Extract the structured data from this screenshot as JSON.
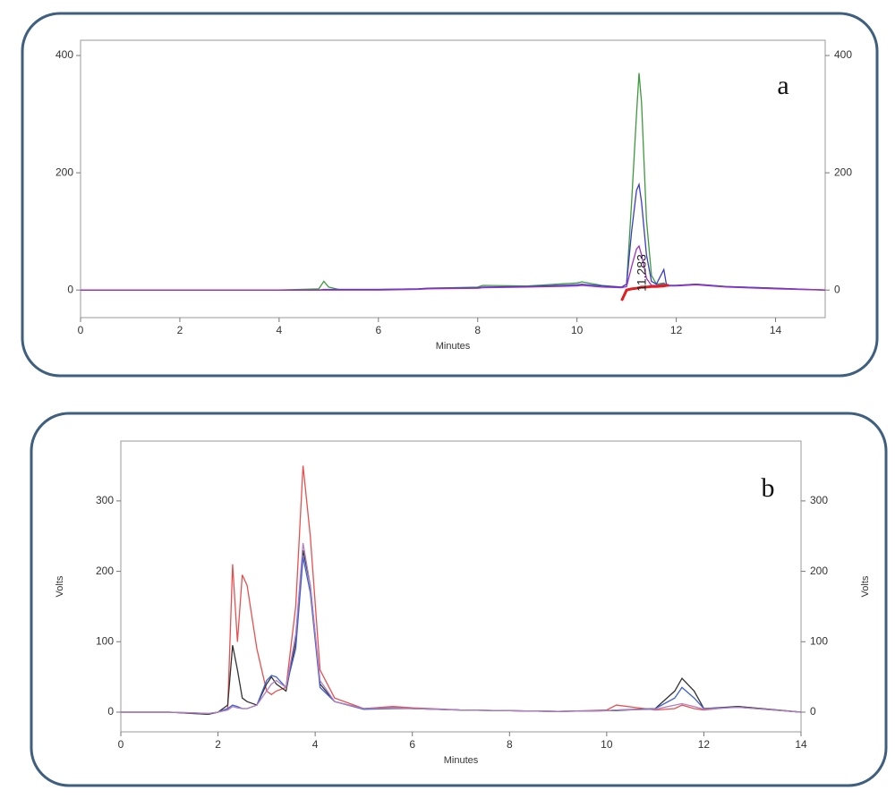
{
  "chart_data": [
    {
      "type": "line",
      "label": "a",
      "peak_label": "11.283",
      "x_label": "Minutes",
      "x": [
        0,
        1,
        2,
        3,
        4,
        4.8,
        4.9,
        5.0,
        5.2,
        6,
        6.8,
        7,
        8,
        8.1,
        9,
        10,
        10.1,
        10.5,
        10.9,
        11.0,
        11.1,
        11.2,
        11.25,
        11.3,
        11.4,
        11.5,
        11.6,
        11.75,
        11.8,
        11.85,
        12,
        12.4,
        13,
        14,
        15
      ],
      "series": [
        {
          "color": "#3c9a3c",
          "values": [
            0,
            0,
            0,
            0,
            0,
            2,
            15,
            5,
            1,
            1,
            2,
            3,
            5,
            8,
            7,
            12,
            14,
            8,
            5,
            10,
            150,
            300,
            370,
            320,
            120,
            25,
            10,
            12,
            8,
            8,
            8,
            10,
            6,
            3,
            0
          ]
        },
        {
          "color": "#3b3bcc",
          "values": [
            0,
            0,
            0,
            0,
            0,
            0,
            1,
            1,
            1,
            1,
            2,
            3,
            4,
            5,
            6,
            9,
            10,
            7,
            5,
            10,
            100,
            170,
            180,
            150,
            60,
            15,
            10,
            35,
            10,
            8,
            8,
            10,
            6,
            3,
            0
          ]
        },
        {
          "color": "#a030c0",
          "values": [
            0,
            0,
            0,
            0,
            0,
            0,
            0,
            0,
            0,
            0,
            1,
            2,
            3,
            4,
            5,
            7,
            8,
            5,
            4,
            6,
            40,
            70,
            75,
            60,
            20,
            8,
            8,
            10,
            8,
            7,
            7,
            9,
            5,
            2,
            0
          ]
        },
        {
          "color": "#e02020",
          "values": [
            null,
            null,
            null,
            null,
            null,
            null,
            null,
            null,
            null,
            null,
            null,
            null,
            null,
            null,
            null,
            null,
            null,
            null,
            -18,
            0,
            2,
            3,
            4,
            5,
            5,
            6,
            6,
            7,
            8,
            8,
            null,
            null,
            null,
            null,
            null
          ]
        }
      ],
      "xlim": [
        0,
        15
      ],
      "xticks": [
        0,
        2,
        4,
        6,
        8,
        10,
        12,
        14
      ],
      "ylim": [
        -47,
        426
      ],
      "yticks": [
        0,
        200,
        400
      ]
    },
    {
      "type": "line",
      "label": "b",
      "x_label": "Minutes",
      "y_label": "Volts",
      "x": [
        0,
        1,
        1.5,
        1.8,
        2.0,
        2.2,
        2.3,
        2.4,
        2.5,
        2.6,
        2.8,
        3.0,
        3.1,
        3.2,
        3.4,
        3.6,
        3.75,
        3.9,
        4.1,
        4.4,
        5,
        5.6,
        6,
        7,
        8,
        9,
        10,
        10.2,
        11,
        11.4,
        11.55,
        11.8,
        12,
        12.7,
        14
      ],
      "series": [
        {
          "color": "#e85050",
          "values": [
            0,
            0,
            -2,
            -3,
            0,
            5,
            210,
            100,
            195,
            180,
            90,
            30,
            25,
            30,
            35,
            150,
            350,
            250,
            60,
            20,
            5,
            8,
            6,
            3,
            2,
            1,
            3,
            10,
            3,
            5,
            10,
            5,
            3,
            8,
            0
          ]
        },
        {
          "color": "#333333",
          "values": [
            0,
            0,
            -2,
            -3,
            0,
            10,
            95,
            60,
            20,
            15,
            10,
            40,
            50,
            40,
            30,
            100,
            230,
            180,
            40,
            15,
            5,
            6,
            5,
            3,
            2,
            1,
            2,
            3,
            5,
            30,
            48,
            30,
            5,
            8,
            0
          ]
        },
        {
          "color": "#4060d0",
          "values": [
            0,
            0,
            -1,
            -2,
            0,
            5,
            10,
            8,
            5,
            5,
            10,
            45,
            52,
            50,
            35,
            90,
            220,
            170,
            35,
            15,
            4,
            5,
            5,
            3,
            2,
            1,
            2,
            2,
            5,
            20,
            35,
            20,
            5,
            7,
            0
          ]
        },
        {
          "color": "#b080c0",
          "values": [
            0,
            0,
            -1,
            -2,
            0,
            3,
            8,
            6,
            5,
            5,
            10,
            30,
            40,
            45,
            35,
            110,
            240,
            180,
            45,
            15,
            5,
            6,
            5,
            3,
            2,
            1,
            2,
            3,
            4,
            10,
            12,
            8,
            4,
            7,
            0
          ]
        }
      ],
      "xlim": [
        0,
        14
      ],
      "xticks": [
        0,
        2,
        4,
        6,
        8,
        10,
        12,
        14
      ],
      "ylim": [
        -28,
        385
      ],
      "yticks": [
        0,
        100,
        200,
        300
      ]
    }
  ]
}
